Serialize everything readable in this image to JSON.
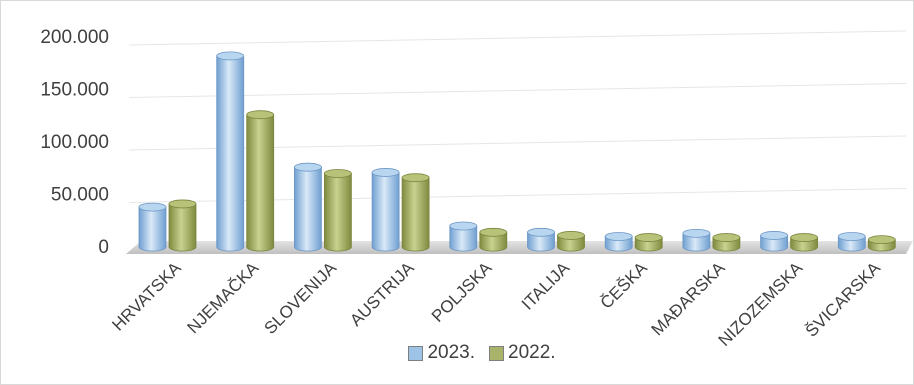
{
  "chart_data": {
    "type": "bar",
    "style": "3d-cylinder-clustered",
    "categories": [
      "HRVATSKA",
      "NJEMAČKA",
      "SLOVENIJA",
      "AUSTRIJA",
      "POLJSKA",
      "ITALIJA",
      "ČEŠKA",
      "MAĐARSKA",
      "NIZOZEMSKA",
      "ŠVICARSKA"
    ],
    "series": [
      {
        "name": "2023.",
        "color": "#9dc3e6",
        "values": [
          38000,
          182000,
          76000,
          71000,
          20000,
          14000,
          10000,
          13000,
          11000,
          10000
        ]
      },
      {
        "name": "2022.",
        "color": "#a9b46a",
        "values": [
          41000,
          126000,
          70000,
          66000,
          14000,
          11000,
          9000,
          9000,
          9000,
          7000
        ]
      }
    ],
    "ylim": [
      0,
      200000
    ],
    "ytick_labels": [
      "0",
      "50.000",
      "100.000",
      "150.000",
      "200.000"
    ],
    "grid": true,
    "legend_position": "bottom"
  }
}
